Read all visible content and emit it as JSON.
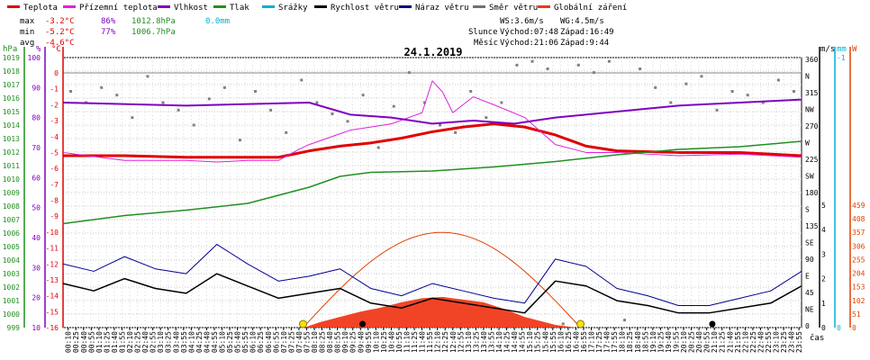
{
  "legend": {
    "items": [
      {
        "label": "Teplota",
        "color": "#e00000"
      },
      {
        "label": "Přízemní teplota",
        "color": "#e020e0"
      },
      {
        "label": "Vlhkost",
        "color": "#8000c0"
      },
      {
        "label": "Tlak",
        "color": "#209020"
      },
      {
        "label": "Srážky",
        "color": "#00b0d0"
      },
      {
        "label": "Rychlost větru",
        "color": "#000000"
      },
      {
        "label": "Náraz větru",
        "color": "#000090"
      },
      {
        "label": "Směr větru",
        "color": "#707070"
      },
      {
        "label": "Globální záření",
        "color": "#e04000"
      }
    ]
  },
  "stats": {
    "max_label": "max",
    "max_temp": "-3.2°C",
    "max_hum": "86%",
    "max_press": "1012.8hPa",
    "max_rain": "0.0mm",
    "min_label": "min",
    "min_temp": "-5.2°C",
    "min_hum": "77%",
    "min_press": "1006.7hPa",
    "avg_label": "avg",
    "avg_temp": "-4.6°C"
  },
  "wind": {
    "ws": "WS:3.6m/s",
    "wg": "WG:4.5m/s"
  },
  "astro": {
    "sun_label": "Slunce",
    "sunrise": "Východ:07:48",
    "sunset": "Západ:16:49",
    "moon_label": "Měsíc",
    "moonrise": "Východ:21:06",
    "moonset": "Západ:9:44"
  },
  "unit_labels": {
    "hpa": "hPa",
    "pct": "%",
    "deg": "°C",
    "ms": "m/s",
    "mm": "mm",
    "w": "W",
    "time": "čas"
  },
  "chart_data": {
    "type": "line",
    "title": "24.1.2019",
    "x_unit": "minutes since 00:00",
    "x_ticks": [
      "00:10",
      "00:25",
      "00:40",
      "00:55",
      "01:10",
      "01:25",
      "01:40",
      "01:55",
      "02:10",
      "02:25",
      "02:40",
      "02:55",
      "03:10",
      "03:25",
      "03:40",
      "03:55",
      "04:10",
      "04:25",
      "04:40",
      "04:55",
      "05:10",
      "05:25",
      "05:40",
      "05:55",
      "06:10",
      "06:25",
      "06:40",
      "06:55",
      "07:10",
      "07:25",
      "07:40",
      "07:55",
      "08:10",
      "08:25",
      "08:40",
      "08:55",
      "09:10",
      "09:25",
      "09:40",
      "09:55",
      "10:10",
      "10:25",
      "10:40",
      "10:55",
      "11:10",
      "11:25",
      "11:40",
      "11:55",
      "12:10",
      "12:25",
      "12:40",
      "12:55",
      "13:10",
      "13:25",
      "13:40",
      "13:55",
      "14:10",
      "14:25",
      "14:40",
      "14:55",
      "15:10",
      "15:25",
      "15:40",
      "15:55",
      "16:10",
      "16:25",
      "16:40",
      "16:55",
      "17:10",
      "17:25",
      "17:40",
      "17:55",
      "18:10",
      "18:25",
      "18:40",
      "18:55",
      "19:10",
      "19:25",
      "19:40",
      "19:55",
      "20:10",
      "20:25",
      "20:40",
      "20:55",
      "21:10",
      "21:25",
      "21:40",
      "21:55",
      "22:10",
      "22:25",
      "22:40",
      "22:55",
      "23:10",
      "23:25",
      "23:40",
      "23:55"
    ],
    "axes": {
      "pressure": {
        "ticks": [
          "999",
          "1000",
          "1001",
          "1002",
          "1003",
          "1004",
          "1005",
          "1006",
          "1007",
          "1008",
          "1009",
          "1010",
          "1011",
          "1012",
          "1013",
          "1014",
          "1015",
          "1016",
          "1017",
          "1018",
          "1019"
        ]
      },
      "humidity": {
        "ticks": [
          "10",
          "20",
          "30",
          "40",
          "50",
          "60",
          "70",
          "80",
          "90",
          "100"
        ]
      },
      "temperature": {
        "ticks": [
          "0",
          "-1",
          "-2",
          "-3",
          "-4",
          "-5",
          "-6",
          "-7",
          "-8",
          "-9",
          "-10",
          "-11",
          "-12",
          "-13",
          "-14",
          "-15",
          "-16"
        ]
      },
      "direction": {
        "ticks": [
          "360",
          "N",
          "315",
          "NW",
          "270",
          "W",
          "225",
          "SW",
          "180",
          "S",
          "135",
          "SE",
          "90",
          "E",
          "45",
          "NE",
          "0"
        ]
      },
      "wind_speed": {
        "ticks": [
          "5",
          "4",
          "3",
          "2",
          "1",
          "0"
        ]
      },
      "rain": {
        "ticks": [
          "-1",
          "0"
        ]
      },
      "radiation": {
        "ticks": [
          "459",
          "408",
          "357",
          "306",
          "255",
          "204",
          "153",
          "102",
          "51",
          "0"
        ]
      }
    },
    "series": [
      {
        "name": "Teplota",
        "axis": "temperature",
        "x": [
          0,
          120,
          240,
          360,
          420,
          480,
          540,
          600,
          660,
          720,
          780,
          840,
          900,
          960,
          1020,
          1080,
          1200,
          1320,
          1440
        ],
        "values": [
          -5.2,
          -5.2,
          -5.3,
          -5.3,
          -5.3,
          -4.9,
          -4.6,
          -4.4,
          -4.1,
          -3.7,
          -3.4,
          -3.2,
          -3.4,
          -3.9,
          -4.6,
          -4.9,
          -5.0,
          -5.0,
          -5.2
        ]
      },
      {
        "name": "Přízemní teplota",
        "axis": "temperature",
        "x": [
          0,
          120,
          240,
          300,
          360,
          420,
          460,
          480,
          560,
          640,
          700,
          720,
          740,
          760,
          800,
          840,
          900,
          960,
          1020,
          1080,
          1200,
          1320,
          1440
        ],
        "values": [
          -5.0,
          -5.5,
          -5.5,
          -5.6,
          -5.5,
          -5.5,
          -4.8,
          -4.5,
          -3.6,
          -3.2,
          -2.5,
          -0.5,
          -1.2,
          -2.5,
          -1.5,
          -2.0,
          -2.8,
          -4.5,
          -5.0,
          -5.0,
          -5.2,
          -5.1,
          -5.3
        ]
      },
      {
        "name": "Vlhkost",
        "axis": "humidity",
        "x": [
          0,
          240,
          480,
          560,
          640,
          720,
          800,
          880,
          960,
          1080,
          1200,
          1320,
          1440
        ],
        "values": [
          85,
          84,
          85,
          81,
          80,
          78,
          79,
          78,
          80,
          82,
          84,
          85,
          86
        ]
      },
      {
        "name": "Tlak",
        "axis": "pressure",
        "x": [
          0,
          120,
          240,
          360,
          480,
          540,
          600,
          720,
          840,
          960,
          1080,
          1200,
          1320,
          1440
        ],
        "values": [
          1006.7,
          1007.3,
          1007.7,
          1008.2,
          1009.4,
          1010.2,
          1010.5,
          1010.6,
          1010.9,
          1011.3,
          1011.8,
          1012.2,
          1012.4,
          1012.8
        ]
      },
      {
        "name": "Rychlost větru",
        "axis": "wind_speed",
        "x": [
          0,
          60,
          120,
          180,
          240,
          300,
          360,
          420,
          480,
          540,
          600,
          660,
          720,
          780,
          840,
          900,
          960,
          1020,
          1080,
          1140,
          1200,
          1260,
          1320,
          1380,
          1440
        ],
        "values": [
          1.8,
          1.5,
          2.0,
          1.6,
          1.4,
          2.2,
          1.7,
          1.2,
          1.4,
          1.6,
          1.0,
          0.8,
          1.2,
          1.0,
          0.8,
          0.6,
          1.9,
          1.7,
          1.1,
          0.9,
          0.6,
          0.6,
          0.8,
          1.0,
          1.7
        ]
      },
      {
        "name": "Náraz větru",
        "axis": "wind_speed",
        "x": [
          0,
          60,
          120,
          180,
          240,
          300,
          360,
          420,
          480,
          540,
          600,
          660,
          720,
          780,
          840,
          900,
          960,
          1020,
          1080,
          1140,
          1200,
          1260,
          1320,
          1380,
          1440
        ],
        "values": [
          2.6,
          2.3,
          2.9,
          2.4,
          2.2,
          3.4,
          2.6,
          1.9,
          2.1,
          2.4,
          1.6,
          1.3,
          1.8,
          1.5,
          1.2,
          1.0,
          2.8,
          2.5,
          1.6,
          1.3,
          0.9,
          0.9,
          1.2,
          1.5,
          2.3
        ]
      },
      {
        "name": "Globální záření",
        "axis": "radiation",
        "x": [
          470,
          500,
          540,
          580,
          620,
          660,
          700,
          740,
          780,
          820,
          860,
          900,
          960,
          1000
        ],
        "values": [
          0,
          20,
          40,
          60,
          75,
          95,
          110,
          115,
          105,
          95,
          70,
          40,
          10,
          0
        ]
      }
    ],
    "solar_clear_sky": {
      "axis": "radiation",
      "sunrise_min": 468,
      "sunset_min": 1009,
      "peak": 357
    },
    "wind_direction_samples": [
      315,
      300,
      320,
      310,
      280,
      335,
      300,
      290,
      270,
      305,
      320,
      250,
      315,
      290,
      260,
      330,
      300,
      285,
      275,
      310,
      240,
      295,
      340,
      300,
      270,
      260,
      315,
      280,
      300,
      350,
      355,
      345,
      5,
      350,
      340,
      355,
      10,
      345,
      320,
      300,
      325,
      335,
      290,
      315,
      310,
      300,
      330,
      315
    ],
    "markers": {
      "sunrise": "07:48",
      "sunset": "16:49",
      "moonrise": "21:06",
      "moonset": "09:44"
    },
    "grid": true
  }
}
